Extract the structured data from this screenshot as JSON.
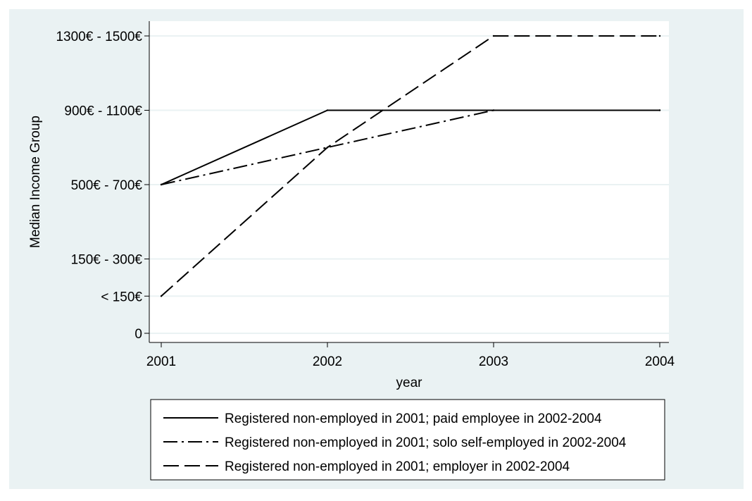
{
  "chart_data": {
    "type": "line",
    "title": "",
    "xlabel": "year",
    "ylabel": "Median Income Group",
    "x": [
      2001,
      2002,
      2003,
      2004
    ],
    "x_tick_labels": [
      "2001",
      "2002",
      "2003",
      "2004"
    ],
    "xlim": [
      2001,
      2004
    ],
    "y_ticks": [
      {
        "value": 0,
        "label": "0"
      },
      {
        "value": 1,
        "label": "< 150€"
      },
      {
        "value": 2,
        "label": "150€ - 300€"
      },
      {
        "value": 4,
        "label": "500€ - 700€"
      },
      {
        "value": 6,
        "label": "900€ - 1100€"
      },
      {
        "value": 8,
        "label": "1300€ - 1500€"
      }
    ],
    "ylim": [
      0,
      8
    ],
    "grid": true,
    "legend_position": "bottom",
    "series": [
      {
        "name": "Registered non-employed in 2001; paid employee in 2002-2004",
        "style": "solid",
        "values": [
          4,
          6,
          6,
          6
        ]
      },
      {
        "name": "Registered non-employed in 2001; solo self-employed in 2002-2004",
        "style": "dashdot",
        "values": [
          4,
          5,
          6,
          6
        ]
      },
      {
        "name": "Registered non-employed in 2001; employer in 2002-2004",
        "style": "dashed",
        "values": [
          1,
          5,
          8,
          8
        ]
      }
    ],
    "colors": {
      "background": "#eaf2f3",
      "plot_area": "#ffffff",
      "grid": "#eaf2f3",
      "line": "#000000"
    }
  }
}
